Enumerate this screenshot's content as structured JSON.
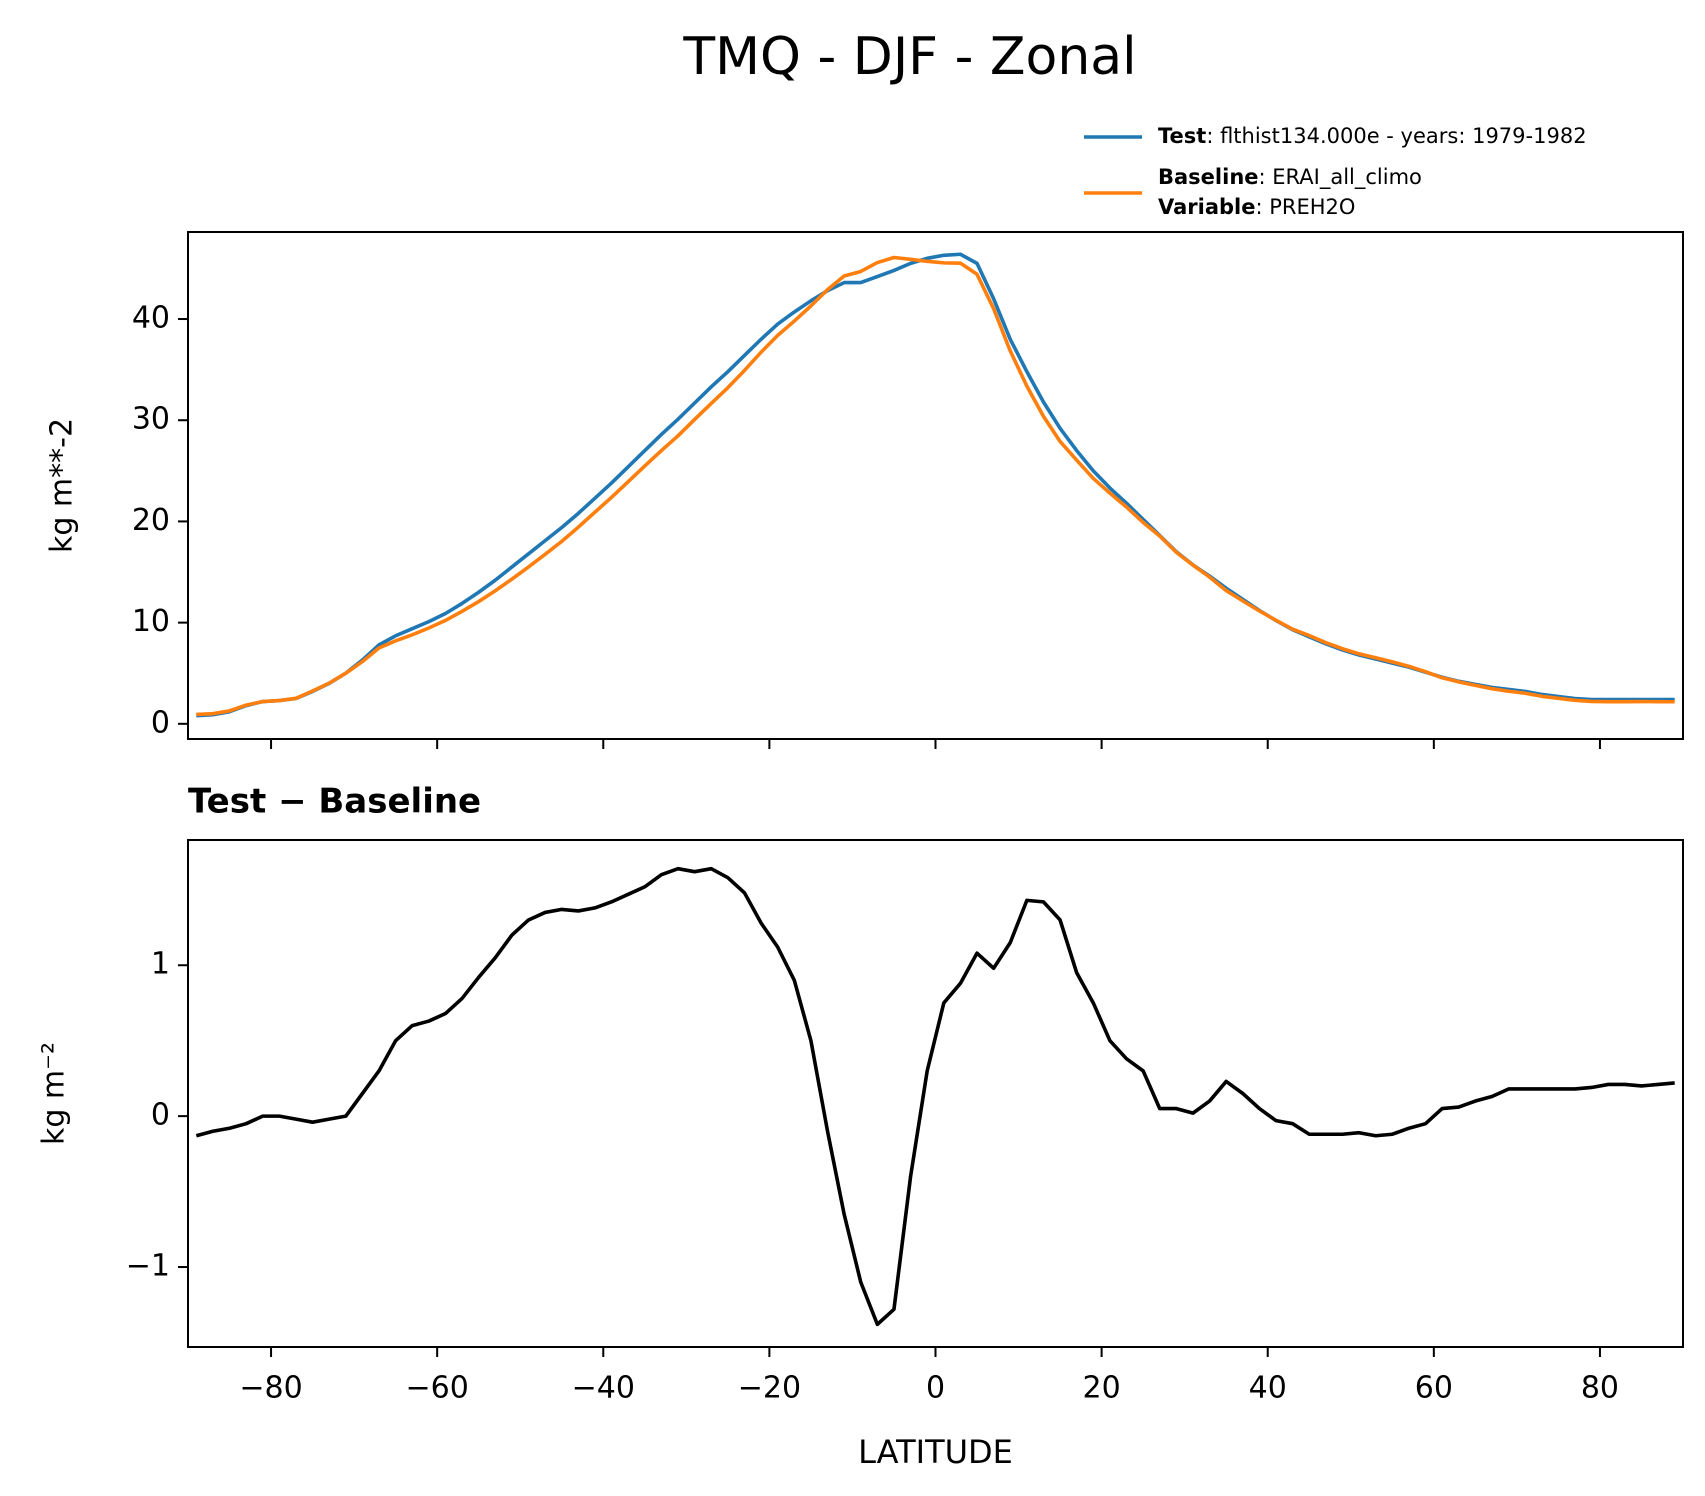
{
  "title": "TMQ - DJF - Zonal",
  "chart_data": [
    {
      "type": "line",
      "x": [
        -89,
        -87,
        -85,
        -83,
        -81,
        -79,
        -77,
        -75,
        -73,
        -71,
        -69,
        -67,
        -65,
        -63,
        -61,
        -59,
        -57,
        -55,
        -53,
        -51,
        -49,
        -47,
        -45,
        -43,
        -41,
        -39,
        -37,
        -35,
        -33,
        -31,
        -29,
        -27,
        -25,
        -23,
        -21,
        -19,
        -17,
        -15,
        -13,
        -11,
        -9,
        -7,
        -5,
        -3,
        -1,
        1,
        3,
        5,
        7,
        9,
        11,
        13,
        15,
        17,
        19,
        21,
        23,
        25,
        27,
        29,
        31,
        33,
        35,
        37,
        39,
        41,
        43,
        45,
        47,
        49,
        51,
        53,
        55,
        57,
        59,
        61,
        63,
        65,
        67,
        69,
        71,
        73,
        75,
        77,
        79,
        81,
        83,
        85,
        87,
        89
      ],
      "series": [
        {
          "name": "Test",
          "label": ": flthist134.000e - years: 1979-1982",
          "color": "#1f77b4",
          "values": [
            0.8,
            0.9,
            1.2,
            1.8,
            2.2,
            2.3,
            2.5,
            3.2,
            4.0,
            5.0,
            6.3,
            7.8,
            8.7,
            9.4,
            10.1,
            10.9,
            11.9,
            13.0,
            14.2,
            15.5,
            16.8,
            18.1,
            19.4,
            20.8,
            22.3,
            23.8,
            25.4,
            27.0,
            28.6,
            30.1,
            31.7,
            33.3,
            34.8,
            36.4,
            38.0,
            39.5,
            40.7,
            41.8,
            42.8,
            43.6,
            43.6,
            44.2,
            44.8,
            45.5,
            46.0,
            46.3,
            46.4,
            45.5,
            42.0,
            38.0,
            34.8,
            31.8,
            29.2,
            27.0,
            25.0,
            23.3,
            21.8,
            20.2,
            18.6,
            17.0,
            15.7,
            14.6,
            13.4,
            12.3,
            11.2,
            10.2,
            9.3,
            8.6,
            7.9,
            7.3,
            6.8,
            6.4,
            6.0,
            5.6,
            5.1,
            4.6,
            4.2,
            3.9,
            3.6,
            3.4,
            3.2,
            2.9,
            2.7,
            2.5,
            2.4,
            2.4,
            2.4,
            2.4,
            2.4,
            2.4
          ]
        },
        {
          "name": "Baseline",
          "label": ": ERAI_all_climo",
          "color": "#ff7f0e",
          "values": [
            0.93,
            1.0,
            1.28,
            1.85,
            2.2,
            2.3,
            2.52,
            3.24,
            4.02,
            5.0,
            6.15,
            7.5,
            8.2,
            8.8,
            9.47,
            10.22,
            11.12,
            12.08,
            13.15,
            14.3,
            15.5,
            16.75,
            18.03,
            19.44,
            20.92,
            22.38,
            23.93,
            25.48,
            27.0,
            28.46,
            30.08,
            31.66,
            33.22,
            34.92,
            36.72,
            38.38,
            39.8,
            41.3,
            42.9,
            44.25,
            44.7,
            45.58,
            46.08,
            45.9,
            45.7,
            45.55,
            45.52,
            44.42,
            41.02,
            36.85,
            33.37,
            30.38,
            27.9,
            26.05,
            24.25,
            22.8,
            21.42,
            19.9,
            18.55,
            16.95,
            15.68,
            14.5,
            13.17,
            12.15,
            11.15,
            10.23,
            9.35,
            8.72,
            8.02,
            7.42,
            6.91,
            6.53,
            6.12,
            5.68,
            5.15,
            4.55,
            4.14,
            3.8,
            3.47,
            3.22,
            3.02,
            2.72,
            2.52,
            2.32,
            2.21,
            2.19,
            2.19,
            2.2,
            2.19,
            2.18
          ]
        }
      ],
      "variable": {
        "name": "Variable",
        "label": ": PREH2O"
      },
      "ylabel": "kg m**-2",
      "xlim": [
        -90,
        90
      ],
      "xticks": [
        -80,
        -60,
        -40,
        -20,
        0,
        20,
        40,
        60,
        80
      ],
      "ylim": [
        -1.5,
        48.6
      ],
      "yticks": [
        0,
        10,
        20,
        30,
        40
      ]
    },
    {
      "type": "line",
      "title": "Test − Baseline",
      "x": [
        -89,
        -87,
        -85,
        -83,
        -81,
        -79,
        -77,
        -75,
        -73,
        -71,
        -69,
        -67,
        -65,
        -63,
        -61,
        -59,
        -57,
        -55,
        -53,
        -51,
        -49,
        -47,
        -45,
        -43,
        -41,
        -39,
        -37,
        -35,
        -33,
        -31,
        -29,
        -27,
        -25,
        -23,
        -21,
        -19,
        -17,
        -15,
        -13,
        -11,
        -9,
        -7,
        -5,
        -3,
        -1,
        1,
        3,
        5,
        7,
        9,
        11,
        13,
        15,
        17,
        19,
        21,
        23,
        25,
        27,
        29,
        31,
        33,
        35,
        37,
        39,
        41,
        43,
        45,
        47,
        49,
        51,
        53,
        55,
        57,
        59,
        61,
        63,
        65,
        67,
        69,
        71,
        73,
        75,
        77,
        79,
        81,
        83,
        85,
        87,
        89
      ],
      "series": [
        {
          "color": "#000000",
          "values": [
            -0.13,
            -0.1,
            -0.08,
            -0.05,
            0.0,
            0.0,
            -0.02,
            -0.04,
            -0.02,
            0.0,
            0.15,
            0.3,
            0.5,
            0.6,
            0.63,
            0.68,
            0.78,
            0.92,
            1.05,
            1.2,
            1.3,
            1.35,
            1.37,
            1.36,
            1.38,
            1.42,
            1.47,
            1.52,
            1.6,
            1.64,
            1.62,
            1.64,
            1.58,
            1.48,
            1.28,
            1.12,
            0.9,
            0.5,
            -0.1,
            -0.65,
            -1.1,
            -1.38,
            -1.28,
            -0.4,
            0.3,
            0.75,
            0.88,
            1.08,
            0.98,
            1.15,
            1.43,
            1.42,
            1.3,
            0.95,
            0.75,
            0.5,
            0.38,
            0.3,
            0.05,
            0.05,
            0.02,
            0.1,
            0.23,
            0.15,
            0.05,
            -0.03,
            -0.05,
            -0.12,
            -0.12,
            -0.12,
            -0.11,
            -0.13,
            -0.12,
            -0.08,
            -0.05,
            0.05,
            0.06,
            0.1,
            0.13,
            0.18,
            0.18,
            0.18,
            0.18,
            0.18,
            0.19,
            0.21,
            0.21,
            0.2,
            0.21,
            0.22
          ]
        }
      ],
      "ylabel": "kg m⁻²",
      "xlabel": "LATITUDE",
      "xlim": [
        -90,
        90
      ],
      "xticks": [
        {
          "value": -80,
          "label": "−80"
        },
        {
          "value": -60,
          "label": "−60"
        },
        {
          "value": -40,
          "label": "−40"
        },
        {
          "value": -20,
          "label": "−20"
        },
        0,
        20,
        40,
        60,
        80
      ],
      "ylim": [
        -1.53,
        1.83
      ],
      "yticks": [
        {
          "value": -1,
          "label": "−1"
        },
        0,
        1
      ]
    }
  ]
}
